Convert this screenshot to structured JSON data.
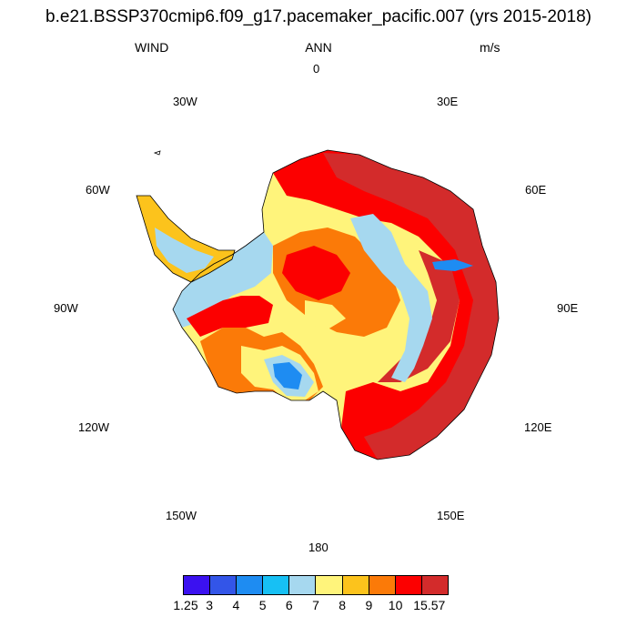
{
  "header": {
    "title": "b.e21.BSSP370cmip6.f09_g17.pacemaker_pacific.007 (yrs 2015-2018)",
    "variable": "WIND",
    "season": "ANN",
    "units": "m/s"
  },
  "longitude_labels": [
    "0",
    "30E",
    "60E",
    "90E",
    "120E",
    "150E",
    "180",
    "150W",
    "120W",
    "90W",
    "60W",
    "30W"
  ],
  "colorbar": {
    "colors": [
      "#3b11f0",
      "#3355e8",
      "#1e8cf2",
      "#17c0f4",
      "#a6d8ef",
      "#fff47b",
      "#fcc31c",
      "#fb7a08",
      "#fc0000",
      "#d32b2b"
    ],
    "labels": [
      "1.25",
      "3",
      "4",
      "5",
      "6",
      "7",
      "8",
      "9",
      "10",
      "15.57"
    ]
  }
}
